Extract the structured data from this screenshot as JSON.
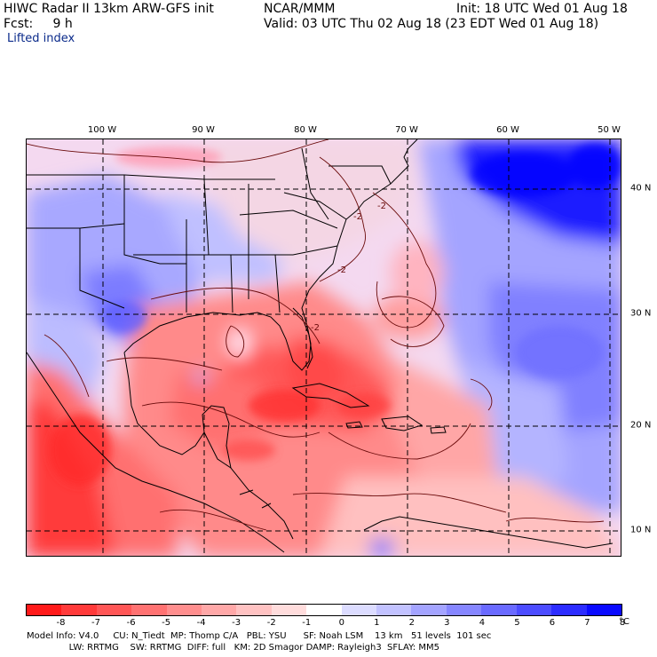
{
  "header": {
    "title_left": "HIWC Radar II 13km ARW-GFS init",
    "org": "NCAR/MMM",
    "init": "Init: 18 UTC Wed 01 Aug 18",
    "fcst": "Fcst:     9 h",
    "valid": "Valid: 03 UTC Thu 02 Aug 18 (23 EDT Wed 01 Aug 18)",
    "field": "Lifted index"
  },
  "map": {
    "lon_labels": [
      "100 W",
      "90 W",
      "80 W",
      "70 W",
      "60 W",
      "50 W"
    ],
    "lat_labels": [
      "40 N",
      "30 N",
      "20 N",
      "10 N"
    ],
    "contour_labels": [
      "-2",
      "-2",
      "-2",
      "-2"
    ]
  },
  "colorbar": {
    "colors": [
      "#ff1a1a",
      "#ff3a3a",
      "#ff5656",
      "#ff7272",
      "#ff8e8e",
      "#ffa8a8",
      "#ffc2c2",
      "#ffdcdc",
      "#ffffff",
      "#dcdcff",
      "#c2c2ff",
      "#a4a4ff",
      "#8686ff",
      "#6a6aff",
      "#4c4cff",
      "#2c2cff",
      "#0a0aff"
    ],
    "tick_labels": [
      "-8",
      "-7",
      "-6",
      "-5",
      "-4",
      "-3",
      "-2",
      "-1",
      "0",
      "1",
      "2",
      "3",
      "4",
      "5",
      "6",
      "7",
      "8"
    ],
    "unit": "°C"
  },
  "footer": {
    "line1": "Model Info: V4.0     CU: N_Tiedt  MP: Thomp C/A   PBL: YSU      SF: Noah LSM    13 km   51 levels  101 sec",
    "line2": "               LW: RRTMG    SW: RRTMG  DIFF: full   KM: 2D Smagor DAMP: Rayleigh3  SFLAY: MM5"
  }
}
